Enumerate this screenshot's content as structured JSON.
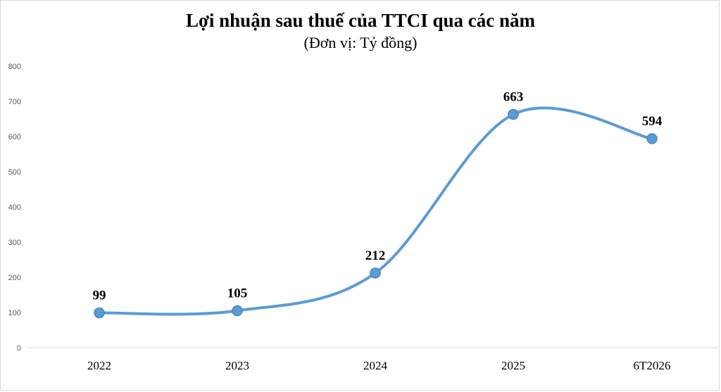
{
  "chart_data": {
    "type": "line",
    "title": "Lợi nhuận sau thuế của TTCI qua các năm",
    "subtitle": "(Đơn vị: Tỷ đồng)",
    "categories": [
      "2022",
      "2023",
      "2024",
      "2025",
      "6T2026"
    ],
    "series": [
      {
        "values": [
          99,
          105,
          212,
          663,
          594
        ],
        "color": "#5b9bd5"
      }
    ],
    "data_labels": [
      "99",
      "105",
      "212",
      "663",
      "594"
    ],
    "yticks": [
      "0",
      "100",
      "200",
      "300",
      "400",
      "500",
      "600",
      "700",
      "800"
    ],
    "ylim": [
      0,
      800
    ],
    "smooth": true,
    "grid": false,
    "legend": "none"
  }
}
